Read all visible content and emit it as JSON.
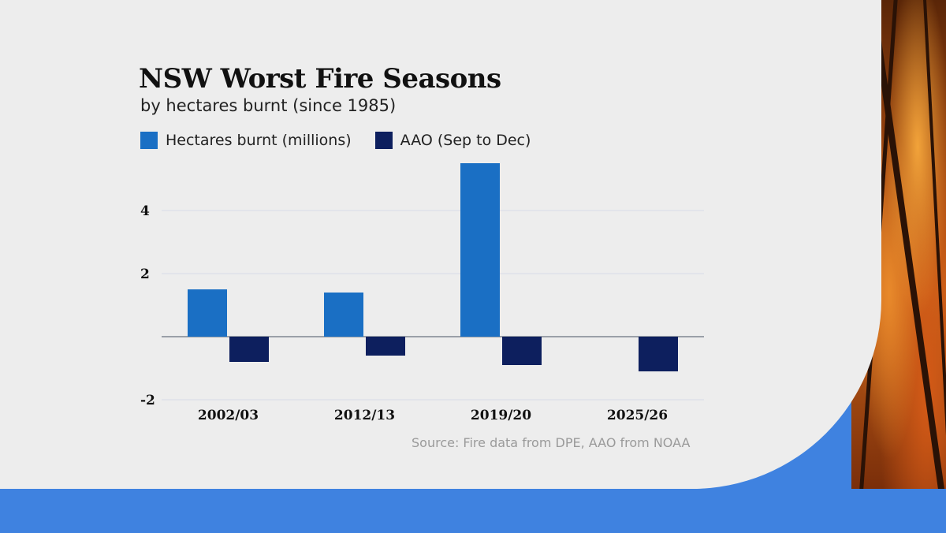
{
  "colors": {
    "hectares": "#1a6fc4",
    "aao": "#0d1f5e",
    "gridline": "#d6dbe6",
    "background_blue": "#3f82e0"
  },
  "background_photo": {
    "icon": "bushfire-photo"
  },
  "chart_data": {
    "type": "bar",
    "title": "NSW Worst Fire Seasons",
    "subtitle": "by hectares burnt (since 1985)",
    "categories": [
      "2002/03",
      "2012/13",
      "2019/20",
      "2025/26"
    ],
    "series": [
      {
        "name": "Hectares burnt (millions)",
        "values": [
          1.5,
          1.4,
          5.5,
          null
        ]
      },
      {
        "name": "AAO (Sep to Dec)",
        "values": [
          -0.8,
          -0.6,
          -0.9,
          -1.1
        ]
      }
    ],
    "yticks": [
      4,
      2,
      -2
    ],
    "ytick_labels": [
      "4",
      "2",
      "-2"
    ],
    "ylim": [
      -2,
      6
    ],
    "legend": "top-left",
    "source": "Source: Fire data from DPE, AAO from NOAA"
  }
}
